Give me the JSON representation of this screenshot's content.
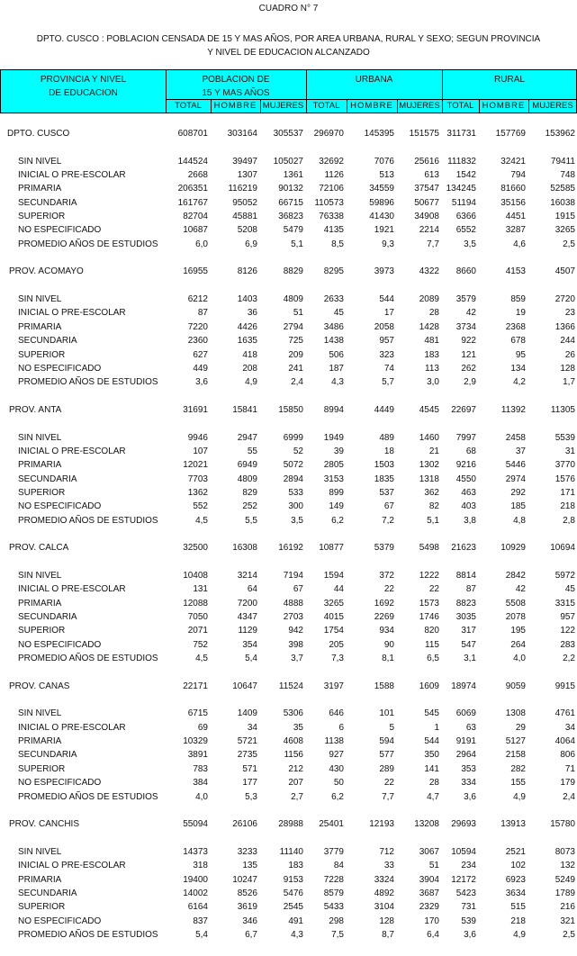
{
  "title": "CUADRO N° 7",
  "subtitle_line1": "DPTO. CUSCO : POBLACION CENSADA DE 15 Y MAS AÑOS, POR AREA URBANA, RURAL Y SEXO; SEGUN PROVINCIA",
  "subtitle_line2": "Y NIVEL DE EDUCACION ALCANZADO",
  "header": {
    "stub_line1": "PROVINCIA Y NIVEL",
    "stub_line2": "DE EDUCACION",
    "group1_line1": "POBLACION DE",
    "group1_line2": "15 Y MAS AÑOS",
    "group2": "URBANA",
    "group3": "RURAL",
    "subcols": [
      "TOTAL",
      "HOMBRE",
      "MUJERES",
      "TOTAL",
      "HOMBRE",
      "MUJERES",
      "TOTAL",
      "HOMBRE",
      "MUJERES"
    ],
    "color": "#00FFFF"
  },
  "sections": [
    {
      "name": "DPTO.  CUSCO",
      "totals": [
        "608701",
        "303164",
        "305537",
        "296970",
        "145395",
        "151575",
        "311731",
        "157769",
        "153962"
      ],
      "rows": [
        {
          "label": "SIN NIVEL",
          "values": [
            "144524",
            "39497",
            "105027",
            "32692",
            "7076",
            "25616",
            "111832",
            "32421",
            "79411"
          ]
        },
        {
          "label": "INICIAL O PRE-ESCOLAR",
          "values": [
            "2668",
            "1307",
            "1361",
            "1126",
            "513",
            "613",
            "1542",
            "794",
            "748"
          ]
        },
        {
          "label": "PRIMARIA",
          "values": [
            "206351",
            "116219",
            "90132",
            "72106",
            "34559",
            "37547",
            "134245",
            "81660",
            "52585"
          ]
        },
        {
          "label": "SECUNDARIA",
          "values": [
            "161767",
            "95052",
            "66715",
            "110573",
            "59896",
            "50677",
            "51194",
            "35156",
            "16038"
          ]
        },
        {
          "label": "SUPERIOR",
          "values": [
            "82704",
            "45881",
            "36823",
            "76338",
            "41430",
            "34908",
            "6366",
            "4451",
            "1915"
          ]
        },
        {
          "label": "NO ESPECIFICADO",
          "values": [
            "10687",
            "5208",
            "5479",
            "4135",
            "1921",
            "2214",
            "6552",
            "3287",
            "3265"
          ]
        },
        {
          "label": "PROMEDIO AÑOS DE ESTUDIOS",
          "values": [
            "6,0",
            "6,9",
            "5,1",
            "8,5",
            "9,3",
            "7,7",
            "3,5",
            "4,6",
            "2,5"
          ]
        }
      ]
    },
    {
      "name": "PROV.  ACOMAYO",
      "totals": [
        "16955",
        "8126",
        "8829",
        "8295",
        "3973",
        "4322",
        "8660",
        "4153",
        "4507"
      ],
      "rows": [
        {
          "label": "SIN NIVEL",
          "values": [
            "6212",
            "1403",
            "4809",
            "2633",
            "544",
            "2089",
            "3579",
            "859",
            "2720"
          ]
        },
        {
          "label": "INICIAL O PRE-ESCOLAR",
          "values": [
            "87",
            "36",
            "51",
            "45",
            "17",
            "28",
            "42",
            "19",
            "23"
          ]
        },
        {
          "label": "PRIMARIA",
          "values": [
            "7220",
            "4426",
            "2794",
            "3486",
            "2058",
            "1428",
            "3734",
            "2368",
            "1366"
          ]
        },
        {
          "label": "SECUNDARIA",
          "values": [
            "2360",
            "1635",
            "725",
            "1438",
            "957",
            "481",
            "922",
            "678",
            "244"
          ]
        },
        {
          "label": "SUPERIOR",
          "values": [
            "627",
            "418",
            "209",
            "506",
            "323",
            "183",
            "121",
            "95",
            "26"
          ]
        },
        {
          "label": "NO ESPECIFICADO",
          "values": [
            "449",
            "208",
            "241",
            "187",
            "74",
            "113",
            "262",
            "134",
            "128"
          ]
        },
        {
          "label": "PROMEDIO AÑOS DE ESTUDIOS",
          "values": [
            "3,6",
            "4,9",
            "2,4",
            "4,3",
            "5,7",
            "3,0",
            "2,9",
            "4,2",
            "1,7"
          ]
        }
      ]
    },
    {
      "name": "PROV.  ANTA",
      "totals": [
        "31691",
        "15841",
        "15850",
        "8994",
        "4449",
        "4545",
        "22697",
        "11392",
        "11305"
      ],
      "rows": [
        {
          "label": "SIN NIVEL",
          "values": [
            "9946",
            "2947",
            "6999",
            "1949",
            "489",
            "1460",
            "7997",
            "2458",
            "5539"
          ]
        },
        {
          "label": "INICIAL O PRE-ESCOLAR",
          "values": [
            "107",
            "55",
            "52",
            "39",
            "18",
            "21",
            "68",
            "37",
            "31"
          ]
        },
        {
          "label": "PRIMARIA",
          "values": [
            "12021",
            "6949",
            "5072",
            "2805",
            "1503",
            "1302",
            "9216",
            "5446",
            "3770"
          ]
        },
        {
          "label": "SECUNDARIA",
          "values": [
            "7703",
            "4809",
            "2894",
            "3153",
            "1835",
            "1318",
            "4550",
            "2974",
            "1576"
          ]
        },
        {
          "label": "SUPERIOR",
          "values": [
            "1362",
            "829",
            "533",
            "899",
            "537",
            "362",
            "463",
            "292",
            "171"
          ]
        },
        {
          "label": "NO ESPECIFICADO",
          "values": [
            "552",
            "252",
            "300",
            "149",
            "67",
            "82",
            "403",
            "185",
            "218"
          ]
        },
        {
          "label": "PROMEDIO AÑOS DE ESTUDIOS",
          "values": [
            "4,5",
            "5,5",
            "3,5",
            "6,2",
            "7,2",
            "5,1",
            "3,8",
            "4,8",
            "2,8"
          ]
        }
      ]
    },
    {
      "name": "PROV.  CALCA",
      "totals": [
        "32500",
        "16308",
        "16192",
        "10877",
        "5379",
        "5498",
        "21623",
        "10929",
        "10694"
      ],
      "rows": [
        {
          "label": "SIN NIVEL",
          "values": [
            "10408",
            "3214",
            "7194",
            "1594",
            "372",
            "1222",
            "8814",
            "2842",
            "5972"
          ]
        },
        {
          "label": "INICIAL O PRE-ESCOLAR",
          "values": [
            "131",
            "64",
            "67",
            "44",
            "22",
            "22",
            "87",
            "42",
            "45"
          ]
        },
        {
          "label": "PRIMARIA",
          "values": [
            "12088",
            "7200",
            "4888",
            "3265",
            "1692",
            "1573",
            "8823",
            "5508",
            "3315"
          ]
        },
        {
          "label": "SECUNDARIA",
          "values": [
            "7050",
            "4347",
            "2703",
            "4015",
            "2269",
            "1746",
            "3035",
            "2078",
            "957"
          ]
        },
        {
          "label": "SUPERIOR",
          "values": [
            "2071",
            "1129",
            "942",
            "1754",
            "934",
            "820",
            "317",
            "195",
            "122"
          ]
        },
        {
          "label": "NO ESPECIFICADO",
          "values": [
            "752",
            "354",
            "398",
            "205",
            "90",
            "115",
            "547",
            "264",
            "283"
          ]
        },
        {
          "label": "PROMEDIO AÑOS DE ESTUDIOS",
          "values": [
            "4,5",
            "5,4",
            "3,7",
            "7,3",
            "8,1",
            "6,5",
            "3,1",
            "4,0",
            "2,2"
          ]
        }
      ]
    },
    {
      "name": "PROV.  CANAS",
      "totals": [
        "22171",
        "10647",
        "11524",
        "3197",
        "1588",
        "1609",
        "18974",
        "9059",
        "9915"
      ],
      "rows": [
        {
          "label": "SIN NIVEL",
          "values": [
            "6715",
            "1409",
            "5306",
            "646",
            "101",
            "545",
            "6069",
            "1308",
            "4761"
          ]
        },
        {
          "label": "INICIAL O PRE-ESCOLAR",
          "values": [
            "69",
            "34",
            "35",
            "6",
            "5",
            "1",
            "63",
            "29",
            "34"
          ]
        },
        {
          "label": "PRIMARIA",
          "values": [
            "10329",
            "5721",
            "4608",
            "1138",
            "594",
            "544",
            "9191",
            "5127",
            "4064"
          ]
        },
        {
          "label": "SECUNDARIA",
          "values": [
            "3891",
            "2735",
            "1156",
            "927",
            "577",
            "350",
            "2964",
            "2158",
            "806"
          ]
        },
        {
          "label": "SUPERIOR",
          "values": [
            "783",
            "571",
            "212",
            "430",
            "289",
            "141",
            "353",
            "282",
            "71"
          ]
        },
        {
          "label": "NO ESPECIFICADO",
          "values": [
            "384",
            "177",
            "207",
            "50",
            "22",
            "28",
            "334",
            "155",
            "179"
          ]
        },
        {
          "label": "PROMEDIO AÑOS DE ESTUDIOS",
          "values": [
            "4,0",
            "5,3",
            "2,7",
            "6,2",
            "7,7",
            "4,7",
            "3,6",
            "4,9",
            "2,4"
          ]
        }
      ]
    },
    {
      "name": "PROV.  CANCHIS",
      "totals": [
        "55094",
        "26106",
        "28988",
        "25401",
        "12193",
        "13208",
        "29693",
        "13913",
        "15780"
      ],
      "rows": [
        {
          "label": "SIN NIVEL",
          "values": [
            "14373",
            "3233",
            "11140",
            "3779",
            "712",
            "3067",
            "10594",
            "2521",
            "8073"
          ]
        },
        {
          "label": "INICIAL O PRE-ESCOLAR",
          "values": [
            "318",
            "135",
            "183",
            "84",
            "33",
            "51",
            "234",
            "102",
            "132"
          ]
        },
        {
          "label": "PRIMARIA",
          "values": [
            "19400",
            "10247",
            "9153",
            "7228",
            "3324",
            "3904",
            "12172",
            "6923",
            "5249"
          ]
        },
        {
          "label": "SECUNDARIA",
          "values": [
            "14002",
            "8526",
            "5476",
            "8579",
            "4892",
            "3687",
            "5423",
            "3634",
            "1789"
          ]
        },
        {
          "label": "SUPERIOR",
          "values": [
            "6164",
            "3619",
            "2545",
            "5433",
            "3104",
            "2329",
            "731",
            "515",
            "216"
          ]
        },
        {
          "label": "NO ESPECIFICADO",
          "values": [
            "837",
            "346",
            "491",
            "298",
            "128",
            "170",
            "539",
            "218",
            "321"
          ]
        },
        {
          "label": "PROMEDIO AÑOS DE ESTUDIOS",
          "values": [
            "5,4",
            "6,7",
            "4,3",
            "7,5",
            "8,7",
            "6,4",
            "3,6",
            "4,9",
            "2,5"
          ]
        }
      ]
    }
  ]
}
